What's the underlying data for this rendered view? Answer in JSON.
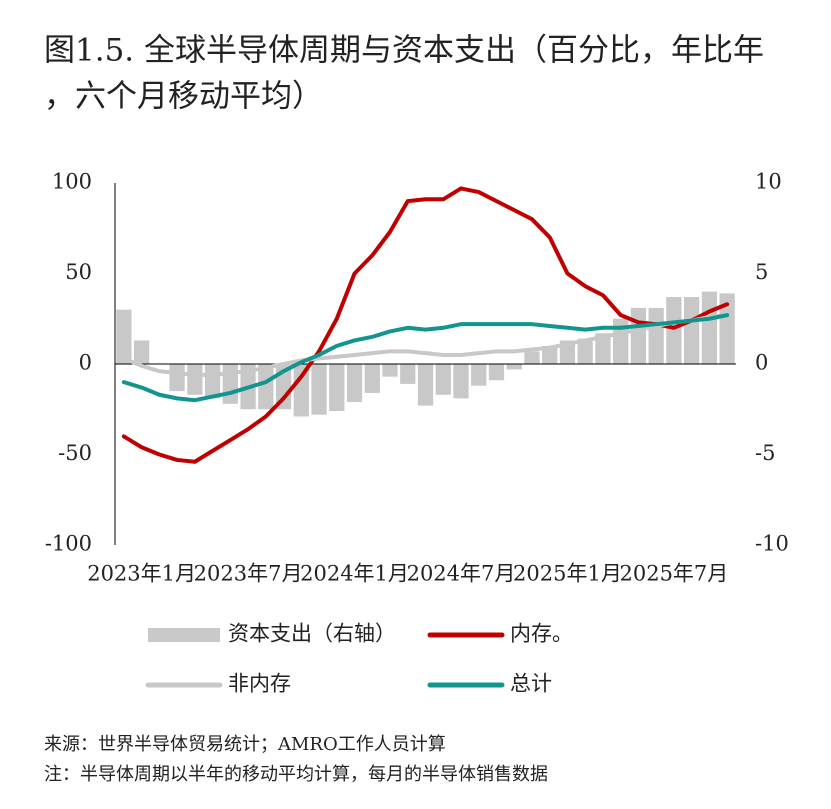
{
  "chart_data": {
    "type": "combo",
    "title": [
      "图1.5. 全球半导体周期与资本支出（百分比，年比年",
      "，六个月移动平均）"
    ],
    "categories": [
      null,
      "2023年1月",
      null,
      null,
      null,
      null,
      null,
      "2023年7月",
      null,
      null,
      null,
      null,
      null,
      "2024年1月",
      null,
      null,
      null,
      null,
      null,
      "2024年7月",
      null,
      null,
      null,
      null,
      null,
      "2025年1月",
      null,
      null,
      null,
      null,
      null,
      "2025年7月",
      null,
      null,
      null
    ],
    "ylim": [
      -100,
      100
    ],
    "yticks": [
      -100,
      -50,
      0,
      50,
      100
    ],
    "y2lim": [
      -10,
      10
    ],
    "y2ticks": [
      -10,
      -5,
      0,
      5,
      10
    ],
    "series": [
      {
        "name": "资本支出（右轴）",
        "type": "bar",
        "axis": "y2",
        "color": "#c8c8c8",
        "values": [
          3.0,
          1.3,
          0,
          -1.5,
          -1.7,
          -1.9,
          -2.2,
          -2.5,
          -2.5,
          -2.5,
          -2.9,
          -2.8,
          -2.6,
          -2.1,
          -1.6,
          -0.7,
          -1.1,
          -2.3,
          -1.7,
          -1.9,
          -1.2,
          -0.9,
          -0.3,
          0.7,
          1.0,
          1.3,
          1.4,
          1.7,
          2.5,
          3.1,
          3.1,
          3.7,
          3.7,
          4.0,
          3.9
        ]
      },
      {
        "name": "内存。",
        "type": "line",
        "color": "#c00000",
        "values": [
          -40,
          -46,
          -50,
          -53,
          -54,
          -48,
          -42,
          -36,
          -29,
          -19,
          -7,
          7,
          25,
          50,
          60,
          73,
          90,
          91,
          91,
          97,
          95,
          90,
          85,
          80,
          70,
          50,
          43,
          38,
          27,
          23,
          22,
          20,
          24,
          29,
          33
        ]
      },
      {
        "name": "非内存",
        "type": "line",
        "color": "#c8c8c8",
        "values": [
          3,
          -1,
          -4,
          -5,
          -6,
          -6,
          -5,
          -4,
          -2,
          0,
          2,
          3,
          4,
          5,
          6,
          7,
          7,
          6,
          5,
          5,
          6,
          7,
          7,
          8,
          9,
          11,
          13,
          15,
          17,
          19,
          21,
          23,
          24,
          26,
          27
        ]
      },
      {
        "name": "总计",
        "type": "line",
        "color": "#12948f",
        "values": [
          -10,
          -13,
          -17,
          -19,
          -20,
          -18,
          -16,
          -13,
          -10,
          -4,
          1,
          5,
          10,
          13,
          15,
          18,
          20,
          19,
          20,
          22,
          22,
          22,
          22,
          22,
          21,
          20,
          19,
          20,
          20,
          21,
          22,
          23,
          24,
          25,
          27
        ]
      }
    ],
    "notes": [
      "来源：世界半导体贸易统计；AMRO工作人员计算",
      "注：半导体周期以半年的移动平均计算，每月的半导体销售数据"
    ]
  }
}
